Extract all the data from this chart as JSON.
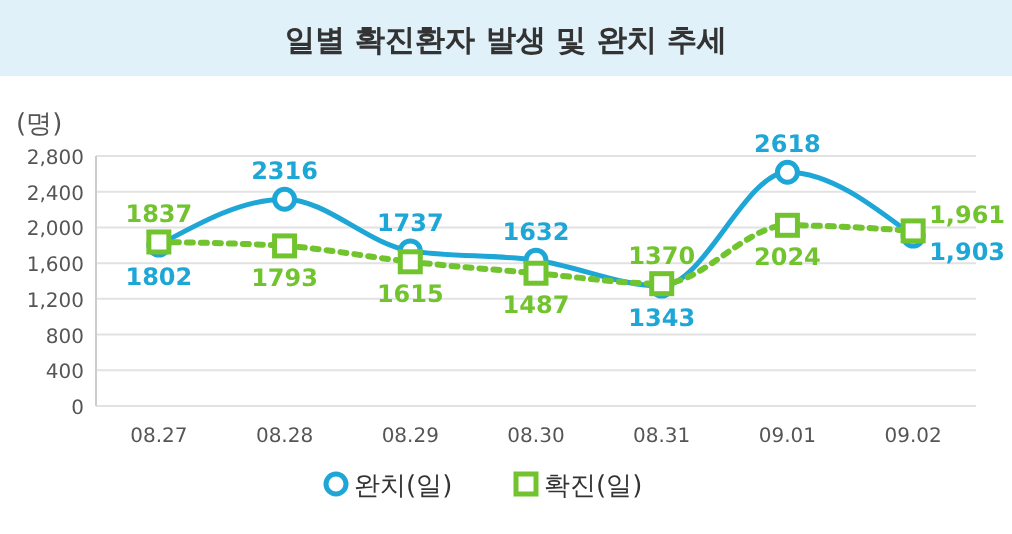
{
  "chart_data": {
    "type": "line",
    "title": "일별 확진환자 발생 및 완치 추세",
    "ylabel": "(명)",
    "categories": [
      "08.27",
      "08.28",
      "08.29",
      "08.30",
      "08.31",
      "09.01",
      "09.02"
    ],
    "series": [
      {
        "name": "완치(일)",
        "color": "#1ea7d6",
        "marker": "circle",
        "line_style": "solid",
        "values": [
          1802,
          2316,
          1737,
          1632,
          1343,
          2618,
          1903
        ],
        "value_labels": [
          "1802",
          "2316",
          "1737",
          "1632",
          "1343",
          "2618",
          "1,903"
        ]
      },
      {
        "name": "확진(일)",
        "color": "#72c42f",
        "marker": "square",
        "line_style": "dotted",
        "values": [
          1837,
          1793,
          1615,
          1487,
          1370,
          2024,
          1961
        ],
        "value_labels": [
          "1837",
          "1793",
          "1615",
          "1487",
          "1370",
          "2024",
          "1,961"
        ]
      }
    ],
    "ylim": [
      0,
      2800
    ],
    "yticks": [
      {
        "value": 0,
        "label": "0"
      },
      {
        "value": 400,
        "label": "400"
      },
      {
        "value": 800,
        "label": "800"
      },
      {
        "value": 1200,
        "label": "1,200"
      },
      {
        "value": 1600,
        "label": "1,600"
      },
      {
        "value": 2000,
        "label": "2,000"
      },
      {
        "value": 2400,
        "label": "2,400"
      },
      {
        "value": 2800,
        "label": "2,800"
      }
    ],
    "grid": "y",
    "legend": "bottom"
  }
}
